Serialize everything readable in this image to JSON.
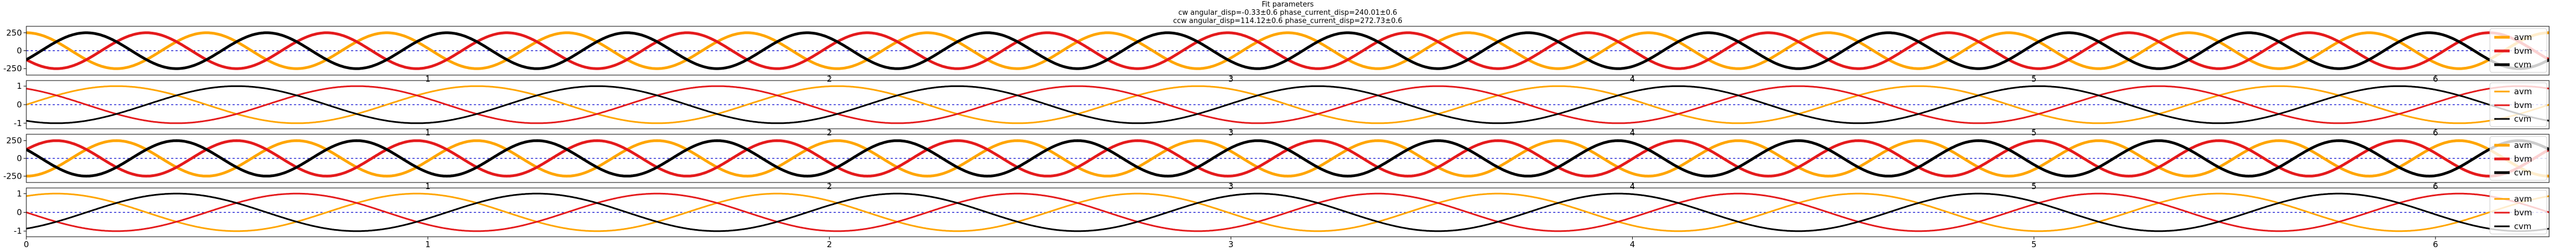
{
  "title_lines": [
    "Fit parameters",
    "cw angular_disp=-0.33±0.6 phase_current_disp=240.01±0.6",
    "ccw angular_disp=114.12±0.6 phase_current_disp=272.73±0.6"
  ],
  "colors": {
    "a": "#ffa500",
    "b": "#e41a1c",
    "c": "#000000",
    "frame": "#000000",
    "zero_line": "#0000cc",
    "legend_border": "#cccccc"
  },
  "chart_data": [
    {
      "type": "line",
      "panel": "top-cw-currents",
      "xlim": [
        0,
        6.283
      ],
      "ylim": [
        -340,
        340
      ],
      "yticks": [
        "250",
        "0",
        "-250"
      ],
      "xticks": [
        "1",
        "2",
        "3",
        "4",
        "5",
        "6"
      ],
      "periods": 14,
      "amplitude": 250,
      "series": [
        {
          "name": "avm",
          "color_key": "a",
          "phase_deg": 90
        },
        {
          "name": "bvm",
          "color_key": "b",
          "phase_deg": 210
        },
        {
          "name": "cvm",
          "color_key": "c",
          "phase_deg": 330
        }
      ],
      "legend": "right",
      "zero_line": true
    },
    {
      "type": "line",
      "panel": "cw-normalized",
      "xlim": [
        0,
        6.283
      ],
      "ylim": [
        -1.3,
        1.3
      ],
      "yticks": [
        "1",
        "0",
        "-1"
      ],
      "xticks": [
        "1",
        "2",
        "3",
        "4",
        "5",
        "6"
      ],
      "periods": 7,
      "amplitude": 1,
      "series": [
        {
          "name": "avm",
          "color_key": "a",
          "phase_deg": 0
        },
        {
          "name": "bvm",
          "color_key": "b",
          "phase_deg": 120
        },
        {
          "name": "cvm",
          "color_key": "c",
          "phase_deg": 240
        }
      ],
      "legend": "right",
      "zero_line": true
    },
    {
      "type": "line",
      "panel": "ccw-currents",
      "xlim": [
        0,
        6.283
      ],
      "ylim": [
        -340,
        340
      ],
      "yticks": [
        "250",
        "0",
        "-250"
      ],
      "xticks": [
        "1",
        "2",
        "3",
        "4",
        "5",
        "6"
      ],
      "periods": 14,
      "amplitude": 250,
      "series": [
        {
          "name": "avm",
          "color_key": "a",
          "phase_deg": 270
        },
        {
          "name": "bvm",
          "color_key": "b",
          "phase_deg": 30
        },
        {
          "name": "cvm",
          "color_key": "c",
          "phase_deg": 150
        }
      ],
      "legend": "right",
      "zero_line": true
    },
    {
      "type": "line",
      "panel": "ccw-normalized",
      "xlim": [
        0,
        6.283
      ],
      "ylim": [
        -1.3,
        1.3
      ],
      "yticks": [
        "1",
        "0",
        "-1"
      ],
      "xticks": [
        "0",
        "1",
        "2",
        "3",
        "4",
        "5",
        "6"
      ],
      "periods": 7,
      "amplitude": 1,
      "series": [
        {
          "name": "avm",
          "color_key": "a",
          "phase_deg": 60
        },
        {
          "name": "bvm",
          "color_key": "b",
          "phase_deg": 180
        },
        {
          "name": "cvm",
          "color_key": "c",
          "phase_deg": 300
        }
      ],
      "legend": "right",
      "zero_line": true
    }
  ]
}
